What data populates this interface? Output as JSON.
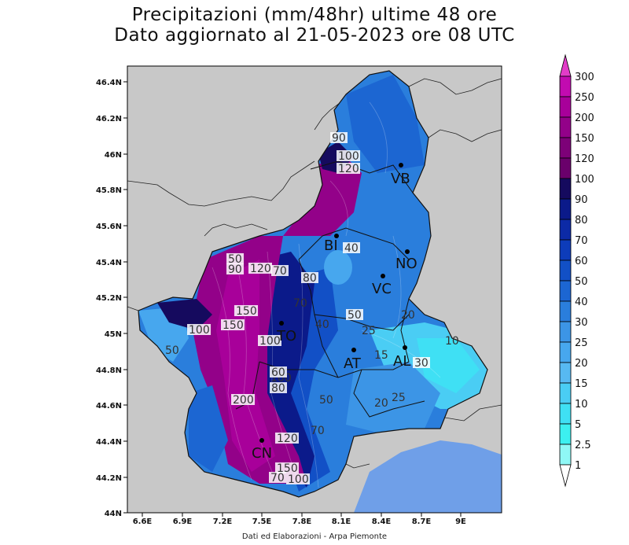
{
  "title_line1": "Precipitazioni (mm/48hr) ultime 48 ore",
  "title_line2": "Dato aggiornato al 21-05-2023 ore 08 UTC",
  "footer": "Dati ed Elaborazioni - Arpa Piemonte",
  "x_ticks": [
    "6.6E",
    "6.9E",
    "7.2E",
    "7.5E",
    "7.8E",
    "8.1E",
    "8.4E",
    "8.7E",
    "9E"
  ],
  "y_ticks": [
    "46.4N",
    "46.2N",
    "46N",
    "45.8N",
    "45.6N",
    "45.4N",
    "45.2N",
    "45N",
    "44.8N",
    "44.6N",
    "44.4N",
    "44.2N",
    "44N"
  ],
  "colorbar": {
    "labels": [
      "300",
      "250",
      "200",
      "150",
      "120",
      "100",
      "90",
      "80",
      "70",
      "60",
      "50",
      "40",
      "30",
      "25",
      "20",
      "15",
      "10",
      "5",
      "2.5",
      "1"
    ],
    "colors": [
      "#c20bb0",
      "#a8009a",
      "#930189",
      "#7d0178",
      "#6a006b",
      "#150a5e",
      "#0b1a8a",
      "#0c2aa6",
      "#0d3cba",
      "#1250c6",
      "#1c66d2",
      "#2a7edc",
      "#3c95e6",
      "#47a7ee",
      "#57b9f2",
      "#4acdf4",
      "#3fe0f4",
      "#3cf0f0",
      "#8ff8f6"
    ]
  },
  "province_labels": [
    "VB",
    "BI",
    "NO",
    "VC",
    "TO",
    "AT",
    "AL",
    "CN"
  ],
  "contour_labels": [
    "90",
    "100",
    "120",
    "50",
    "90",
    "120",
    "70",
    "80",
    "40",
    "70",
    "150",
    "100",
    "150",
    "100",
    "50",
    "40",
    "50",
    "25",
    "20",
    "15",
    "30",
    "10",
    "100",
    "60",
    "80",
    "200",
    "50",
    "25",
    "20",
    "70",
    "120",
    "150",
    "70",
    "100"
  ]
}
